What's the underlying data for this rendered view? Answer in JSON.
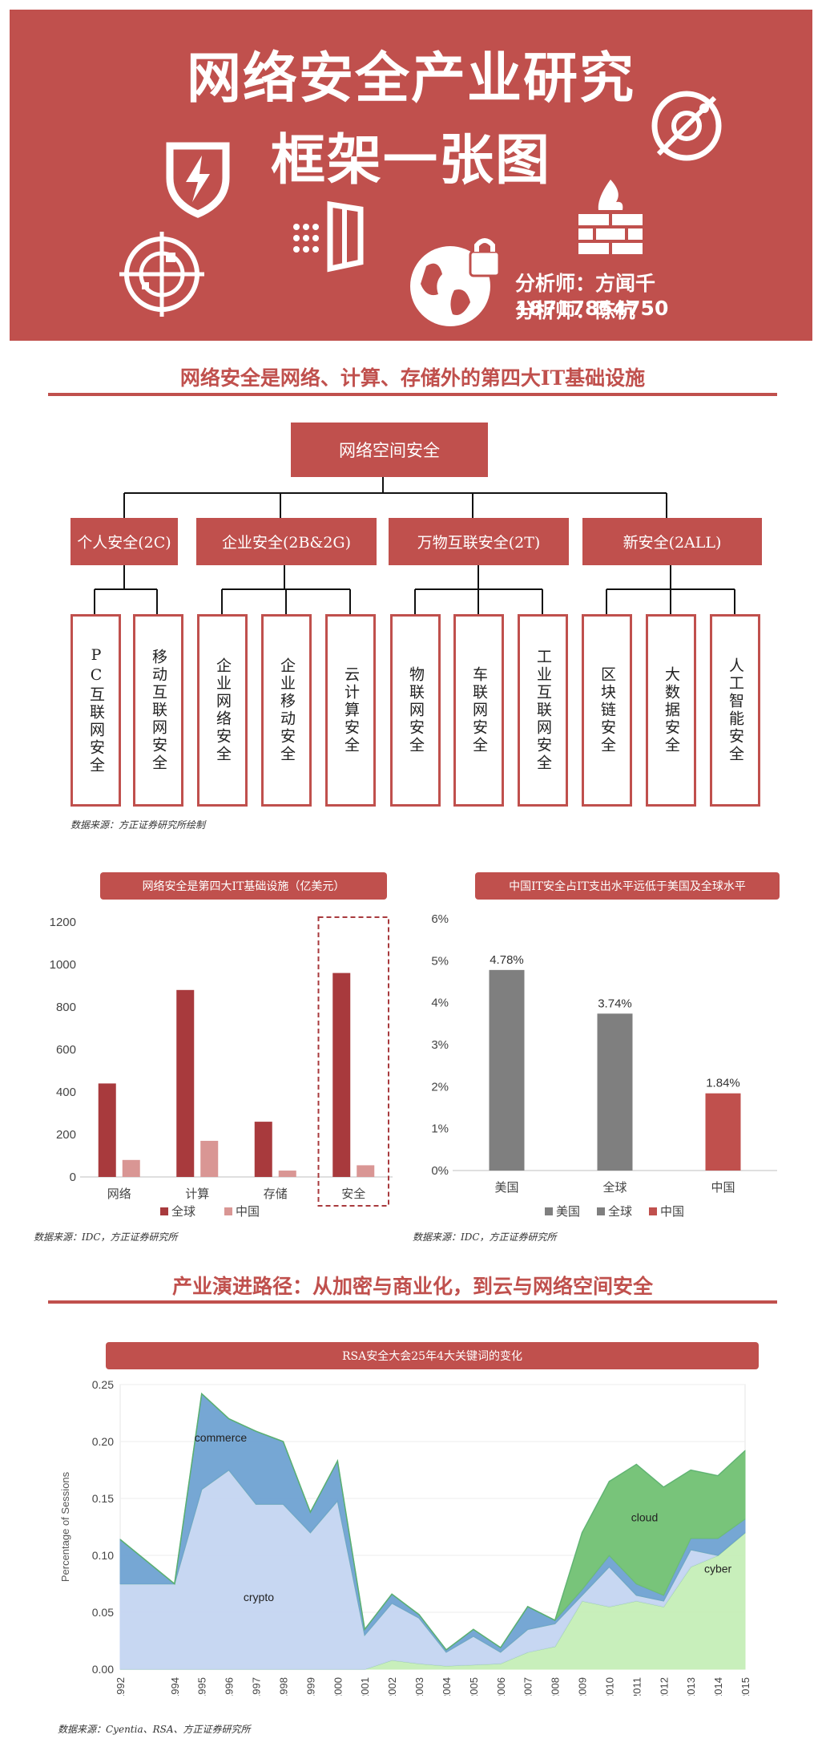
{
  "header": {
    "title_line1": "网络安全产业研究",
    "title_line2": "框架一张图",
    "analyst1": "分析师：方闻千 18717854750",
    "analyst2": "分析师：陈杭"
  },
  "section1": {
    "title": "网络安全是网络、计算、存储外的第四大IT基础设施",
    "root": "网络空间安全",
    "groups": [
      {
        "label": "个人安全(2C)",
        "leaves": [
          "PC互联网安全",
          "移动互联网安全"
        ]
      },
      {
        "label": "企业安全(2B&2G)",
        "leaves": [
          "企业网络安全",
          "企业移动安全",
          "云计算安全"
        ]
      },
      {
        "label": "万物互联安全(2T)",
        "leaves": [
          "物联网安全",
          "车联网安全",
          "工业互联网安全"
        ]
      },
      {
        "label": "新安全(2ALL)",
        "leaves": [
          "区块链安全",
          "大数据安全",
          "人工智能安全"
        ]
      }
    ],
    "source": "数据来源：方正证券研究所绘制"
  },
  "chart1_tag": "网络安全是第四大IT基础设施（亿美元）",
  "chart2_tag": "中国IT安全占IT支出水平远低于美国及全球水平",
  "chart1_source": "数据来源：IDC，方正证券研究所",
  "chart2_source": "数据来源：IDC，方正证券研究所",
  "section2": {
    "title": "产业演进路径：从加密与商业化，到云与网络空间安全",
    "chart_tag": "RSA安全大会25年4大关键词的变化",
    "source": "数据来源：Cyentia、RSA、方正证券研究所"
  },
  "colors": {
    "brand": "#c0504d",
    "light_red": "#d99694",
    "gray": "#7f7f7f"
  },
  "chart_data": [
    {
      "type": "bar",
      "categories": [
        "网络",
        "计算",
        "存储",
        "安全"
      ],
      "series": [
        {
          "name": "全球",
          "values": [
            440,
            880,
            260,
            960
          ],
          "color": "#a83a3d"
        },
        {
          "name": "中国",
          "values": [
            80,
            170,
            30,
            55
          ],
          "color": "#d99694"
        }
      ],
      "ylim": [
        0,
        1200
      ],
      "yticks": [
        0,
        200,
        400,
        600,
        800,
        1000,
        1200
      ],
      "highlight": "安全",
      "legend": "bottom"
    },
    {
      "type": "bar",
      "categories": [
        "美国",
        "全球",
        "中国"
      ],
      "values": [
        4.78,
        3.74,
        1.84
      ],
      "data_labels": [
        "4.78%",
        "3.74%",
        "1.84%"
      ],
      "colors": [
        "#7f7f7f",
        "#7f7f7f",
        "#c0504d"
      ],
      "legend_entries": [
        "美国",
        "全球",
        "中国"
      ],
      "ylim": [
        0,
        6
      ],
      "yticks": [
        "0%",
        "1%",
        "2%",
        "3%",
        "4%",
        "5%",
        "6%"
      ],
      "legend": "bottom"
    },
    {
      "type": "area",
      "x": [
        1992,
        1994,
        1995,
        1996,
        1997,
        1998,
        1999,
        2000,
        2001,
        2002,
        2003,
        2004,
        2005,
        2006,
        2007,
        2008,
        2009,
        2010,
        2011,
        2012,
        2013,
        2014,
        2015
      ],
      "ylabel": "Percentage of Sessions",
      "ylim": [
        0,
        0.25
      ],
      "yticks": [
        "0.00",
        "0.05",
        "0.10",
        "0.15",
        "0.20",
        "0.25"
      ],
      "series": [
        {
          "name": "cyber",
          "values": [
            0,
            0,
            0,
            0,
            0,
            0,
            0,
            0,
            0,
            0.008,
            0.005,
            0.003,
            0.004,
            0.005,
            0.015,
            0.02,
            0.06,
            0.055,
            0.06,
            0.055,
            0.09,
            0.1,
            0.12
          ],
          "color": "#c6efb8"
        },
        {
          "name": "crypto",
          "values": [
            0.075,
            0.075,
            0.158,
            0.175,
            0.145,
            0.145,
            0.12,
            0.148,
            0.03,
            0.05,
            0.04,
            0.012,
            0.025,
            0.01,
            0.02,
            0.02,
            0.005,
            0.035,
            0.005,
            0.005,
            0.015,
            0.0,
            0.0
          ],
          "color": "#c5d5f2"
        },
        {
          "name": "commerce",
          "values": [
            0.039,
            0.0,
            0.084,
            0.045,
            0.064,
            0.055,
            0.018,
            0.035,
            0.005,
            0.008,
            0.003,
            0.002,
            0.006,
            0.004,
            0.02,
            0.003,
            0.005,
            0.01,
            0.01,
            0.005,
            0.01,
            0.015,
            0.012
          ],
          "color": "#6fa3d2"
        },
        {
          "name": "cloud",
          "values": [
            0,
            0,
            0,
            0,
            0,
            0,
            0,
            0,
            0,
            0,
            0,
            0,
            0,
            0,
            0,
            0,
            0.05,
            0.065,
            0.105,
            0.095,
            0.06,
            0.055,
            0.06
          ],
          "color": "#71c173"
        }
      ],
      "labels": [
        {
          "name": "commerce",
          "x": 1995.7,
          "y": 0.2
        },
        {
          "name": "crypto",
          "x": 1997.1,
          "y": 0.06
        },
        {
          "name": "cloud",
          "x": 2011.3,
          "y": 0.13
        },
        {
          "name": "cyber",
          "x": 2014.0,
          "y": 0.085
        }
      ]
    }
  ]
}
